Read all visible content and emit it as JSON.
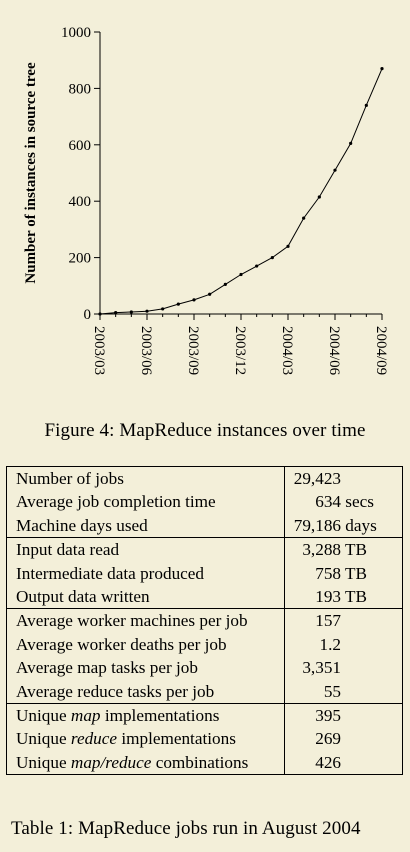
{
  "chart_data": {
    "type": "line",
    "ylabel": "Number of instances in source tree",
    "xlabel": "",
    "ylim": [
      0,
      1000
    ],
    "yticks": [
      0,
      200,
      400,
      600,
      800,
      1000
    ],
    "xtick_labels": [
      "2003/03",
      "2003/06",
      "2003/09",
      "2003/12",
      "2004/03",
      "2004/06",
      "2004/09"
    ],
    "x": [
      "2003/03",
      "2003/04",
      "2003/05",
      "2003/06",
      "2003/07",
      "2003/08",
      "2003/09",
      "2003/10",
      "2003/11",
      "2003/12",
      "2004/01",
      "2004/02",
      "2004/03",
      "2004/04",
      "2004/05",
      "2004/06",
      "2004/07",
      "2004/08",
      "2004/09"
    ],
    "values": [
      0,
      5,
      7,
      10,
      18,
      35,
      50,
      70,
      105,
      140,
      170,
      200,
      240,
      340,
      415,
      510,
      605,
      740,
      870
    ],
    "grid": false,
    "color": "#000000"
  },
  "figure_caption": "Figure 4: MapReduce instances over time",
  "table": {
    "caption": "Table 1: MapReduce jobs run in August 2004",
    "groups": [
      [
        {
          "label": "Number of jobs",
          "value": "29,423"
        },
        {
          "label": "Average job completion time",
          "value": "634 secs"
        },
        {
          "label": "Machine days used",
          "value": "79,186 days"
        }
      ],
      [
        {
          "label": "Input data read",
          "value": "3,288 TB"
        },
        {
          "label": "Intermediate data produced",
          "value": "758 TB"
        },
        {
          "label": "Output data written",
          "value": "193 TB"
        }
      ],
      [
        {
          "label": "Average worker machines per job",
          "value": "157"
        },
        {
          "label": "Average worker deaths per job",
          "value": "1.2"
        },
        {
          "label": "Average map tasks per job",
          "value": "3,351"
        },
        {
          "label": "Average reduce tasks per job",
          "value": "55"
        }
      ],
      [
        {
          "label_pre": "Unique ",
          "label_em": "map",
          "label_post": " implementations",
          "value": "395"
        },
        {
          "label_pre": "Unique ",
          "label_em": "reduce",
          "label_post": " implementations",
          "value": "269"
        },
        {
          "label_pre": "Unique ",
          "label_em": "map/reduce",
          "label_post": " combinations",
          "value": "426"
        }
      ]
    ]
  }
}
